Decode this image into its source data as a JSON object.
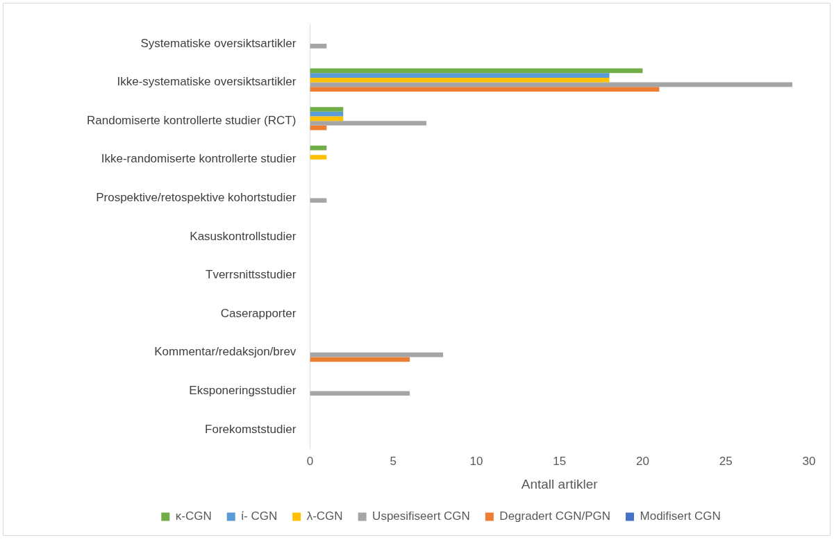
{
  "chart_data": {
    "type": "bar",
    "orientation": "horizontal",
    "xlabel": "Antall artikler",
    "categories": [
      "Systematiske oversiktsartikler",
      "Ikke-systematiske oversiktsartikler",
      "Randomiserte kontrollerte studier (RCT)",
      "Ikke-randomiserte kontrollerte studier",
      "Prospektive/retospektive kohortstudier",
      "Kasuskontrollstudier",
      "Tverrsnittsstudier",
      "Caserapporter",
      "Kommentar/redaksjon/brev",
      "Eksponeringsstudier",
      "Forekomststudier"
    ],
    "series": [
      {
        "name": "κ-CGN",
        "color": "#70ad47",
        "values": [
          0,
          20,
          2,
          1,
          0,
          0,
          0,
          0,
          0,
          0,
          0
        ]
      },
      {
        "name": "ί- CGN",
        "color": "#5b9bd5",
        "values": [
          0,
          18,
          2,
          0,
          0,
          0,
          0,
          0,
          0,
          0,
          0
        ]
      },
      {
        "name": "λ-CGN",
        "color": "#ffc000",
        "values": [
          0,
          18,
          2,
          1,
          0,
          0,
          0,
          0,
          0,
          0,
          0
        ]
      },
      {
        "name": "Uspesifiseert CGN",
        "color": "#a5a5a5",
        "values": [
          1,
          29,
          7,
          0,
          1,
          0,
          0,
          0,
          8,
          6,
          0
        ]
      },
      {
        "name": "Degradert CGN/PGN",
        "color": "#ed7d31",
        "values": [
          0,
          21,
          1,
          0,
          0,
          0,
          0,
          0,
          6,
          0,
          0
        ]
      },
      {
        "name": "Modifisert CGN",
        "color": "#4472c4",
        "values": [
          0,
          0,
          0,
          0,
          0,
          0,
          0,
          0,
          0,
          0,
          0
        ]
      }
    ],
    "xlim": [
      0,
      30
    ],
    "xticks": [
      0,
      5,
      10,
      15,
      20,
      25,
      30
    ],
    "grid": false,
    "legend": "bottom"
  }
}
